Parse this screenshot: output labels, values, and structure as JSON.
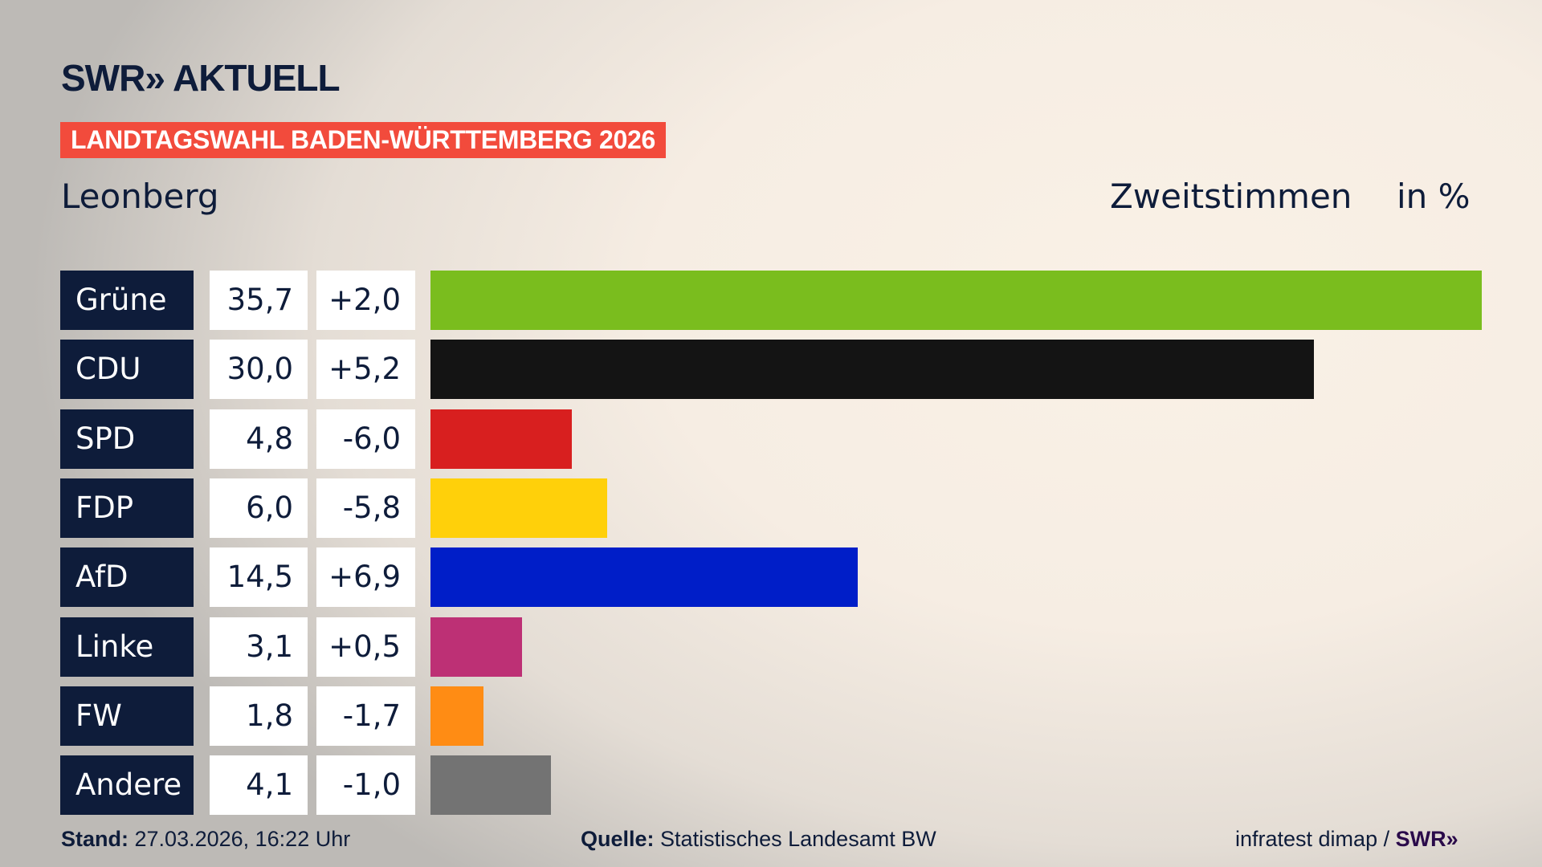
{
  "header": {
    "logo": "SWR» AKTUELL",
    "banner": "LANDTAGSWAHL BADEN-WÜRTTEMBERG 2026",
    "region": "Leonberg",
    "metric": "Zweitstimmen",
    "unit": "in %"
  },
  "chart_data": {
    "type": "bar",
    "orientation": "horizontal",
    "categories": [
      "Grüne",
      "CDU",
      "SPD",
      "FDP",
      "AfD",
      "Linke",
      "FW",
      "Andere"
    ],
    "values": [
      35.7,
      30.0,
      4.8,
      6.0,
      14.5,
      3.1,
      1.8,
      4.1
    ],
    "value_labels": [
      "35,7",
      "30,0",
      "4,8",
      "6,0",
      "14,5",
      "3,1",
      "1,8",
      "4,1"
    ],
    "diff_labels": [
      "+2,0",
      "+5,2",
      "-6,0",
      "-5,8",
      "+6,9",
      "+0,5",
      "-1,7",
      "-1,0"
    ],
    "colors": [
      "#7abd1e",
      "#141414",
      "#d81f1f",
      "#ffd00a",
      "#001ec8",
      "#bd3075",
      "#ff8c14",
      "#737373"
    ],
    "xlim": [
      0,
      35.7
    ]
  },
  "footer": {
    "stand_label": "Stand:",
    "stand_value": "27.03.2026, 16:22 Uhr",
    "source_label": "Quelle:",
    "source_value": "Statistisches Landesamt BW",
    "credit": "infratest dimap /",
    "credit_logo": "SWR»"
  }
}
